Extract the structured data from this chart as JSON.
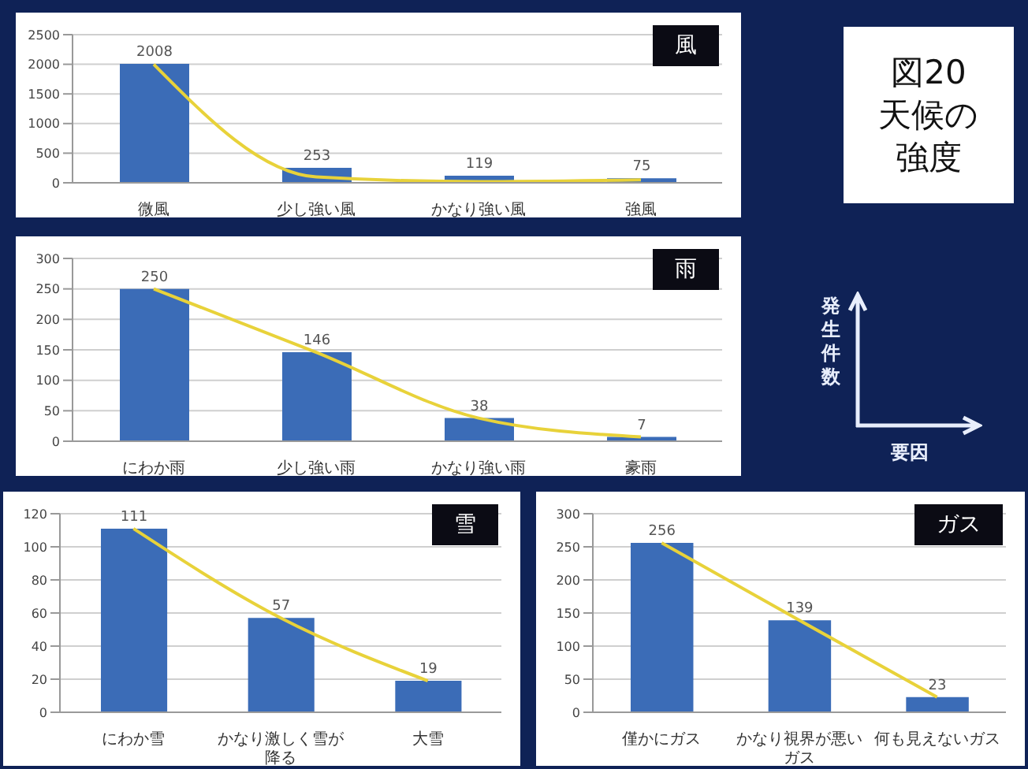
{
  "chart_data": [
    {
      "type": "bar",
      "title": "風",
      "categories": [
        "微風",
        "少し強い風",
        "かなり強い風",
        "強風"
      ],
      "series": [
        {
          "type": "bar",
          "color": "#3b6cb7",
          "values": [
            2008,
            253,
            119,
            75
          ],
          "value_labels": [
            "2008",
            "253",
            "119",
            "75"
          ]
        },
        {
          "type": "line",
          "color": "#e8d23a",
          "values": [
            2000,
            100,
            20,
            50
          ]
        }
      ],
      "ylim": [
        0,
        2500
      ],
      "yticks": [
        0,
        500,
        1000,
        1500,
        2000,
        2500
      ],
      "grid": "y",
      "marker": "none"
    },
    {
      "type": "bar",
      "title": "雨",
      "categories": [
        "にわか雨",
        "少し強い雨",
        "かなり強い雨",
        "豪雨"
      ],
      "series": [
        {
          "type": "bar",
          "color": "#3b6cb7",
          "values": [
            250,
            146,
            38,
            7
          ],
          "value_labels": [
            "250",
            "146",
            "38",
            "7"
          ]
        },
        {
          "type": "line",
          "color": "#e8d23a",
          "values": [
            250,
            146,
            38,
            7
          ]
        }
      ],
      "ylim": [
        0,
        300
      ],
      "yticks": [
        0,
        50,
        100,
        150,
        200,
        250,
        300
      ],
      "grid": "y",
      "marker": "none"
    },
    {
      "type": "bar",
      "title": "雪",
      "categories": [
        "にわか雪",
        "かなり激しく雪が降る",
        "大雪"
      ],
      "series": [
        {
          "type": "bar",
          "color": "#3b6cb7",
          "values": [
            111,
            57,
            19
          ],
          "value_labels": [
            "111",
            "57",
            "19"
          ]
        },
        {
          "type": "line",
          "color": "#e8d23a",
          "values": [
            111,
            57,
            19
          ]
        }
      ],
      "ylim": [
        0,
        120
      ],
      "yticks": [
        0,
        20,
        40,
        60,
        80,
        100,
        120
      ],
      "grid": "y",
      "marker": "none"
    },
    {
      "type": "bar",
      "title": "ガス",
      "categories": [
        "僅かにガス",
        "かなり視界が悪いガス",
        "何も見えないガス"
      ],
      "series": [
        {
          "type": "bar",
          "color": "#3b6cb7",
          "values": [
            256,
            139,
            23
          ],
          "value_labels": [
            "256",
            "139",
            "23"
          ]
        },
        {
          "type": "line",
          "color": "#e8d23a",
          "values": [
            256,
            139,
            23
          ]
        }
      ],
      "ylim": [
        0,
        300
      ],
      "yticks": [
        0,
        50,
        100,
        150,
        200,
        250,
        300
      ],
      "grid": "y",
      "marker": "none"
    },
    {
      "type": "other",
      "title": "図20 天候の強度",
      "ylabel": "発生件数",
      "xlabel": "要因"
    }
  ]
}
